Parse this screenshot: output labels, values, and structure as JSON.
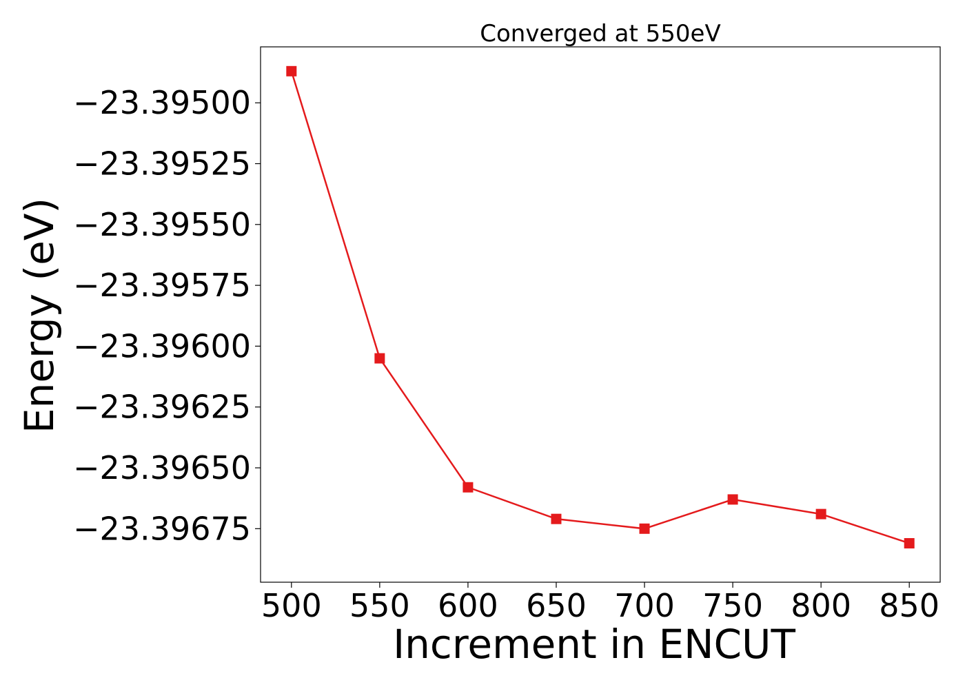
{
  "chart_data": {
    "type": "line",
    "title": "Converged at 550eV",
    "xlabel": "Increment in ENCUT",
    "ylabel": "Energy (eV)",
    "x": [
      500,
      550,
      600,
      650,
      700,
      750,
      800,
      850
    ],
    "series": [
      {
        "values": [
          -23.39487,
          -23.39605,
          -23.39658,
          -23.39671,
          -23.39675,
          -23.39663,
          -23.39669,
          -23.39681
        ],
        "color": "#e41a1c",
        "marker": "square"
      }
    ],
    "xticks": [
      500,
      550,
      600,
      650,
      700,
      750,
      800,
      850
    ],
    "xtick_labels": [
      "500",
      "550",
      "600",
      "650",
      "700",
      "750",
      "800",
      "850"
    ],
    "yticks": [
      -23.395,
      -23.39525,
      -23.3955,
      -23.39575,
      -23.396,
      -23.39625,
      -23.3965,
      -23.39675
    ],
    "ytick_labels": [
      "−23.39500",
      "−23.39525",
      "−23.39550",
      "−23.39575",
      "−23.39600",
      "−23.39625",
      "−23.39650",
      "−23.39675"
    ],
    "xlim": [
      482.5,
      867.5
    ],
    "ylim": [
      -23.39697,
      -23.39477
    ],
    "grid": false,
    "legend": "none"
  }
}
